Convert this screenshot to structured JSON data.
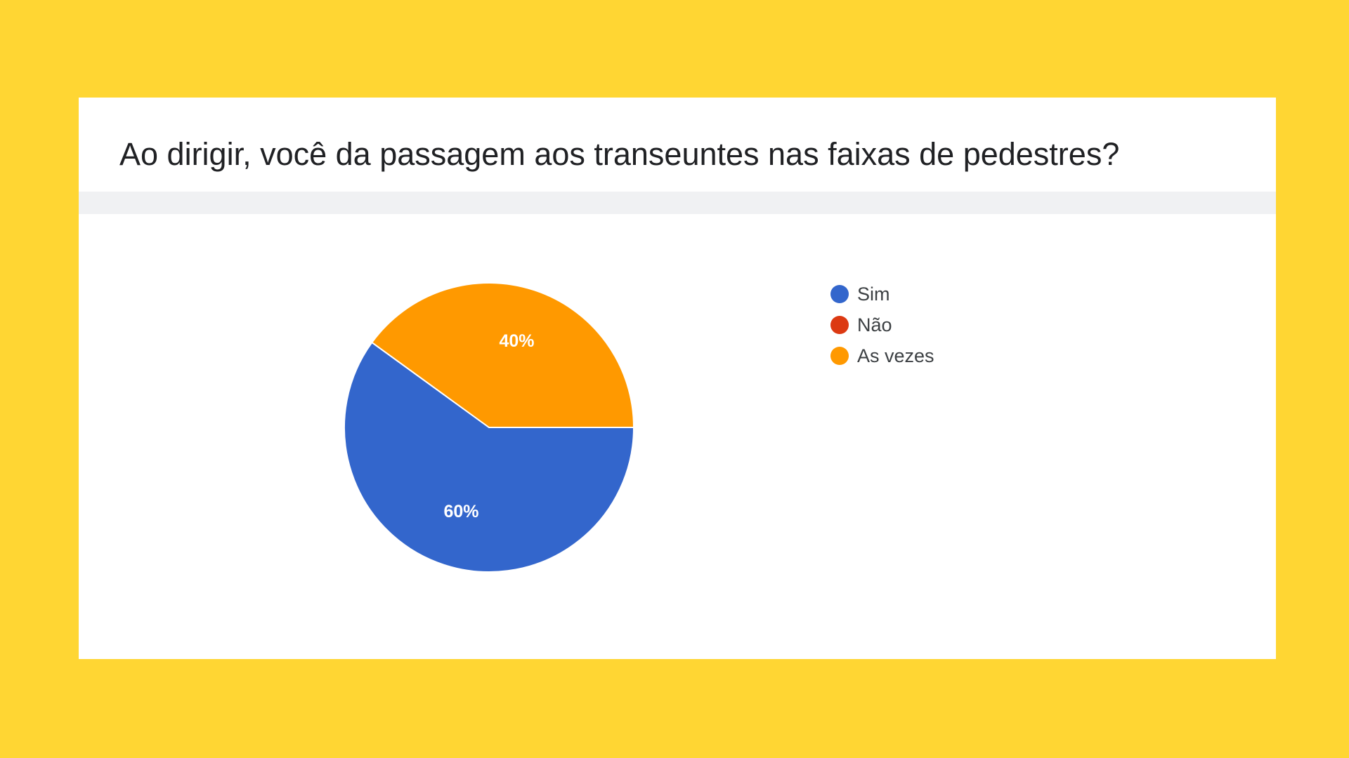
{
  "question": {
    "title": "Ao dirigir, você da passagem aos transeuntes nas faixas de pedestres?"
  },
  "chart_data": {
    "type": "pie",
    "title": "Ao dirigir, você da passagem aos transeuntes nas faixas de pedestres?",
    "categories": [
      "Sim",
      "Não",
      "As vezes"
    ],
    "values": [
      60,
      0,
      40
    ],
    "unit": "%",
    "data_labels": [
      "60%",
      "",
      "40%"
    ],
    "colors": [
      "#3366CC",
      "#DC3912",
      "#FF9900"
    ],
    "legend_position": "right"
  },
  "legend": {
    "items": [
      {
        "label": "Sim",
        "color": "#3366CC"
      },
      {
        "label": "Não",
        "color": "#DC3912"
      },
      {
        "label": "As vezes",
        "color": "#FF9900"
      }
    ]
  },
  "colors": {
    "background": "#FFD633",
    "card": "#FFFFFF",
    "divider": "#F0F1F3",
    "title_text": "#202124"
  }
}
